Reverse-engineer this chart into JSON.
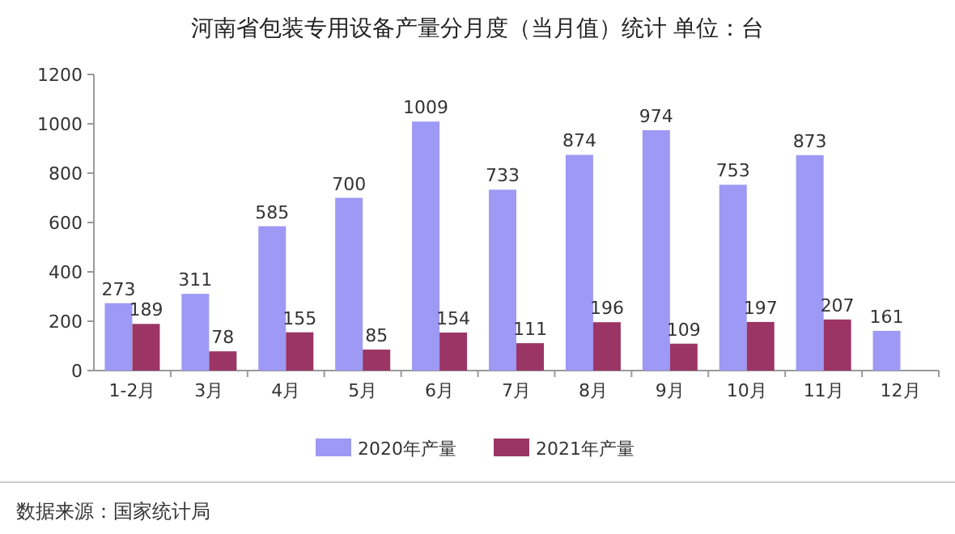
{
  "chart_data": {
    "type": "bar",
    "title": "河南省包装专用设备产量分月度（当月值）统计  单位：台",
    "categories": [
      "1-2月",
      "3月",
      "4月",
      "5月",
      "6月",
      "7月",
      "8月",
      "9月",
      "10月",
      "11月",
      "12月"
    ],
    "series": [
      {
        "name": "2020年产量",
        "color": "#9d99f5",
        "values": [
          273,
          311,
          585,
          700,
          1009,
          733,
          874,
          974,
          753,
          873,
          161
        ]
      },
      {
        "name": "2021年产量",
        "color": "#9b3565",
        "values": [
          189,
          78,
          155,
          85,
          154,
          111,
          196,
          109,
          197,
          207,
          null
        ]
      }
    ],
    "ylim": [
      0,
      1200
    ],
    "yticks": [
      0,
      200,
      400,
      600,
      800,
      1000,
      1200
    ],
    "grid": false,
    "legend": "bottom",
    "data_labels": true,
    "annotations": [
      "数据来源：国家统计局"
    ]
  }
}
